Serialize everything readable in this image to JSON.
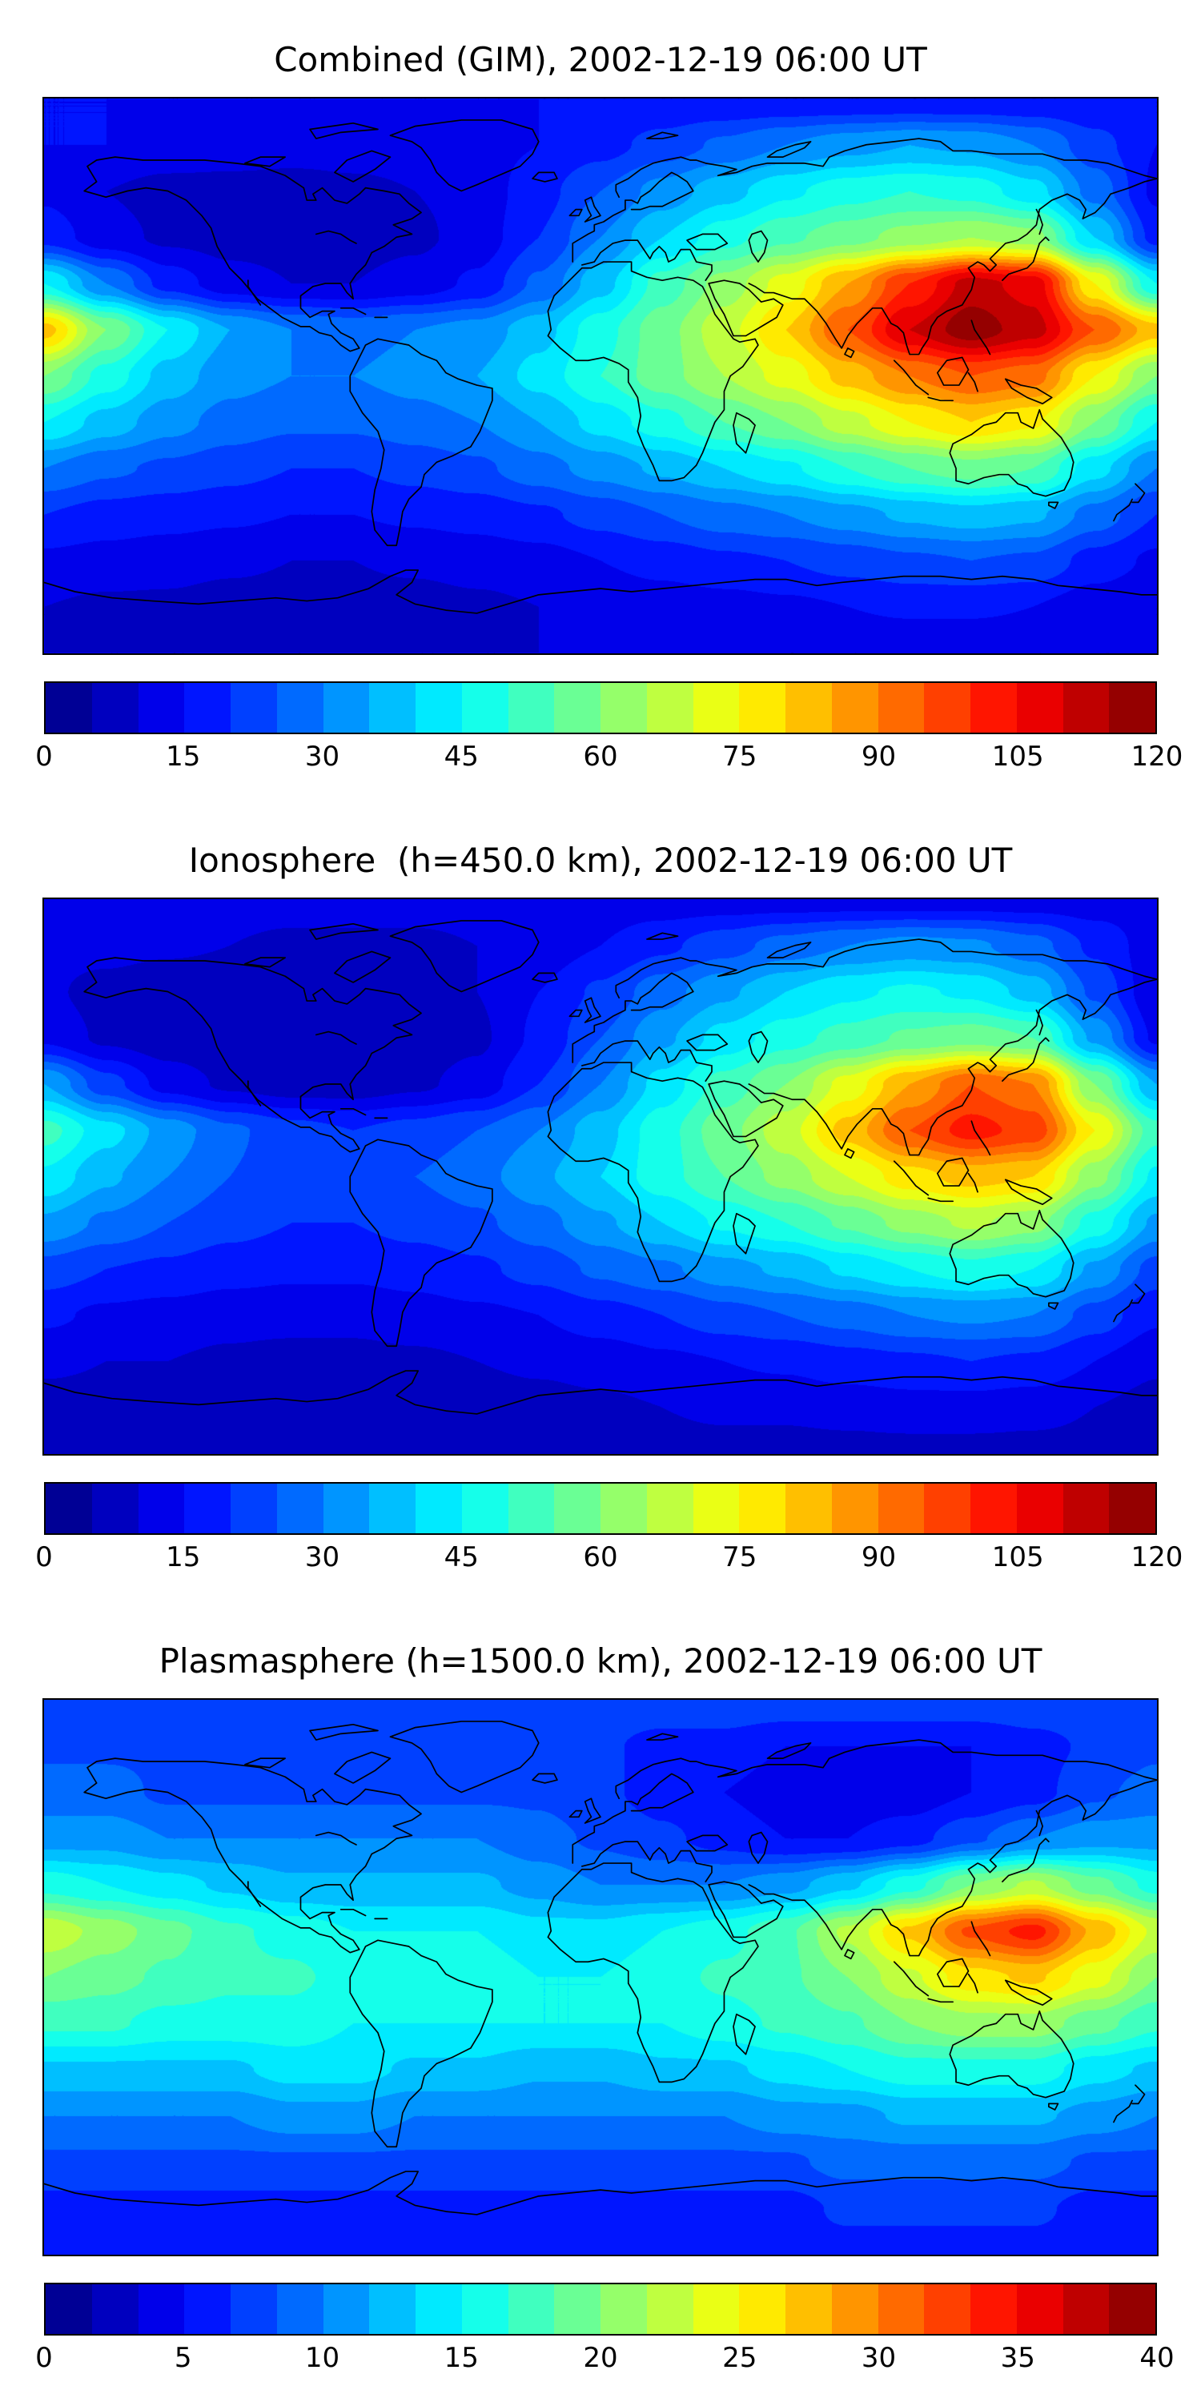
{
  "figure": {
    "panels": [
      {
        "id": "combined",
        "title": "Combined (GIM), 2002-12-19 06:00 UT",
        "colorbar": {
          "min": 0,
          "max": 120,
          "ticks": [
            "0",
            "15",
            "30",
            "45",
            "60",
            "75",
            "90",
            "105",
            "120"
          ],
          "n_segments": 24,
          "colormap": "jet",
          "orientation": "horizontal"
        }
      },
      {
        "id": "ionosphere",
        "title": "Ionosphere  (h=450.0 km), 2002-12-19 06:00 UT",
        "colorbar": {
          "min": 0,
          "max": 120,
          "ticks": [
            "0",
            "15",
            "30",
            "45",
            "60",
            "75",
            "90",
            "105",
            "120"
          ],
          "n_segments": 24,
          "colormap": "jet",
          "orientation": "horizontal"
        }
      },
      {
        "id": "plasmasphere",
        "title": "Plasmasphere (h=1500.0 km), 2002-12-19 06:00 UT",
        "colorbar": {
          "min": 0,
          "max": 40,
          "ticks": [
            "0",
            "5",
            "10",
            "15",
            "20",
            "25",
            "30",
            "35",
            "40"
          ],
          "n_segments": 24,
          "colormap": "jet",
          "orientation": "horizontal"
        }
      }
    ]
  },
  "chart_data": [
    {
      "type": "heatmap",
      "title": "Combined (GIM), 2002-12-19 06:00 UT",
      "projection": "equirectangular",
      "colormap": "jet",
      "vmin": 0,
      "vmax": 120,
      "n_levels": 24,
      "colorbar_ticks": [
        0,
        15,
        30,
        45,
        60,
        75,
        90,
        105,
        120
      ],
      "lon": [
        -180,
        -160,
        -140,
        -120,
        -100,
        -80,
        -60,
        -40,
        -20,
        0,
        20,
        40,
        60,
        80,
        100,
        120,
        140,
        160,
        180
      ],
      "lat": [
        90,
        75,
        60,
        45,
        30,
        15,
        0,
        -15,
        -30,
        -45,
        -60,
        -75,
        -90
      ],
      "values": [
        [
          15,
          15,
          15,
          15,
          15,
          15,
          15,
          15,
          15,
          15,
          15,
          15,
          15,
          15,
          15,
          15,
          15,
          15,
          15
        ],
        [
          15,
          15,
          14,
          13,
          12,
          12,
          12,
          13,
          15,
          18,
          22,
          26,
          30,
          33,
          35,
          34,
          30,
          22,
          15
        ],
        [
          14,
          10,
          8,
          8,
          8,
          9,
          10,
          12,
          18,
          25,
          32,
          38,
          44,
          48,
          50,
          48,
          42,
          28,
          14
        ],
        [
          18,
          12,
          9,
          8,
          8,
          8,
          9,
          12,
          20,
          30,
          40,
          48,
          54,
          58,
          62,
          65,
          62,
          40,
          18
        ],
        [
          45,
          30,
          18,
          12,
          10,
          10,
          12,
          16,
          26,
          38,
          52,
          62,
          72,
          85,
          100,
          112,
          108,
          75,
          45
        ],
        [
          82,
          60,
          45,
          35,
          30,
          28,
          30,
          32,
          38,
          48,
          58,
          68,
          80,
          95,
          110,
          118,
          112,
          95,
          82
        ],
        [
          60,
          48,
          38,
          32,
          30,
          30,
          32,
          35,
          42,
          50,
          58,
          65,
          72,
          82,
          90,
          95,
          92,
          75,
          60
        ],
        [
          45,
          38,
          32,
          28,
          26,
          26,
          28,
          30,
          35,
          42,
          48,
          55,
          60,
          68,
          75,
          80,
          76,
          60,
          45
        ],
        [
          30,
          26,
          24,
          22,
          20,
          20,
          22,
          24,
          28,
          32,
          36,
          40,
          44,
          50,
          55,
          58,
          55,
          42,
          30
        ],
        [
          20,
          18,
          17,
          16,
          15,
          15,
          16,
          17,
          19,
          22,
          25,
          28,
          30,
          33,
          36,
          38,
          36,
          28,
          20
        ],
        [
          14,
          13,
          12,
          11,
          10,
          10,
          11,
          12,
          13,
          15,
          17,
          19,
          20,
          22,
          24,
          25,
          24,
          18,
          14
        ],
        [
          10,
          9,
          9,
          8,
          8,
          8,
          8,
          9,
          10,
          11,
          12,
          13,
          14,
          15,
          16,
          16,
          15,
          12,
          10
        ],
        [
          10,
          10,
          10,
          10,
          10,
          10,
          10,
          10,
          10,
          10,
          10,
          10,
          10,
          10,
          10,
          10,
          10,
          10,
          10
        ]
      ]
    },
    {
      "type": "heatmap",
      "title": "Ionosphere  (h=450.0 km), 2002-12-19 06:00 UT",
      "projection": "equirectangular",
      "colormap": "jet",
      "vmin": 0,
      "vmax": 120,
      "n_levels": 24,
      "colorbar_ticks": [
        0,
        15,
        30,
        45,
        60,
        75,
        90,
        105,
        120
      ],
      "lon": [
        -180,
        -160,
        -140,
        -120,
        -100,
        -80,
        -60,
        -40,
        -20,
        0,
        20,
        40,
        60,
        80,
        100,
        120,
        140,
        160,
        180
      ],
      "lat": [
        90,
        75,
        60,
        45,
        30,
        15,
        0,
        -15,
        -30,
        -45,
        -60,
        -75,
        -90
      ],
      "values": [
        [
          12,
          12,
          12,
          12,
          12,
          12,
          12,
          12,
          12,
          12,
          12,
          12,
          12,
          12,
          12,
          12,
          12,
          12,
          12
        ],
        [
          12,
          12,
          11,
          10,
          9,
          9,
          9,
          10,
          12,
          15,
          19,
          23,
          27,
          30,
          32,
          31,
          27,
          19,
          12
        ],
        [
          11,
          8,
          6,
          6,
          6,
          7,
          8,
          10,
          15,
          21,
          28,
          34,
          40,
          44,
          46,
          44,
          38,
          24,
          11
        ],
        [
          14,
          9,
          7,
          6,
          6,
          6,
          7,
          9,
          16,
          25,
          34,
          42,
          48,
          52,
          56,
          58,
          55,
          34,
          14
        ],
        [
          35,
          22,
          13,
          9,
          7,
          7,
          9,
          12,
          20,
          30,
          42,
          52,
          60,
          72,
          85,
          95,
          90,
          60,
          35
        ],
        [
          52,
          42,
          33,
          26,
          22,
          20,
          22,
          25,
          30,
          38,
          48,
          58,
          68,
          82,
          95,
          102,
          98,
          75,
          52
        ],
        [
          44,
          36,
          30,
          25,
          22,
          22,
          25,
          28,
          34,
          40,
          48,
          55,
          62,
          70,
          78,
          82,
          80,
          62,
          44
        ],
        [
          34,
          29,
          25,
          22,
          20,
          20,
          22,
          24,
          28,
          34,
          40,
          46,
          50,
          56,
          62,
          66,
          62,
          48,
          34
        ],
        [
          23,
          20,
          19,
          17,
          16,
          16,
          17,
          19,
          22,
          26,
          29,
          33,
          36,
          41,
          45,
          48,
          45,
          34,
          23
        ],
        [
          16,
          14,
          13,
          12,
          12,
          12,
          13,
          14,
          15,
          18,
          20,
          23,
          25,
          27,
          30,
          31,
          30,
          23,
          16
        ],
        [
          11,
          10,
          10,
          9,
          8,
          8,
          9,
          10,
          11,
          12,
          14,
          15,
          16,
          18,
          19,
          20,
          19,
          15,
          11
        ],
        [
          8,
          8,
          7,
          7,
          6,
          6,
          7,
          7,
          8,
          9,
          10,
          11,
          11,
          12,
          13,
          13,
          12,
          10,
          8
        ],
        [
          8,
          8,
          8,
          8,
          8,
          8,
          8,
          8,
          8,
          8,
          8,
          8,
          8,
          8,
          8,
          8,
          8,
          8,
          8
        ]
      ]
    },
    {
      "type": "heatmap",
      "title": "Plasmasphere (h=1500.0 km), 2002-12-19 06:00 UT",
      "projection": "equirectangular",
      "colormap": "jet",
      "vmin": 0,
      "vmax": 40,
      "n_levels": 24,
      "colorbar_ticks": [
        0,
        5,
        10,
        15,
        20,
        25,
        30,
        35,
        40
      ],
      "lon": [
        -180,
        -160,
        -140,
        -120,
        -100,
        -80,
        -60,
        -40,
        -20,
        0,
        20,
        40,
        60,
        80,
        100,
        120,
        140,
        160,
        180
      ],
      "lat": [
        90,
        75,
        60,
        45,
        30,
        15,
        0,
        -15,
        -30,
        -45,
        -60,
        -75,
        -90
      ],
      "values": [
        [
          8,
          8,
          8,
          8,
          8,
          8,
          8,
          8,
          8,
          8,
          8,
          8,
          8,
          8,
          8,
          8,
          8,
          8,
          8
        ],
        [
          8,
          8,
          8,
          7,
          7,
          7,
          7,
          7,
          7,
          7,
          6,
          6,
          5,
          5,
          5,
          5,
          6,
          7,
          8
        ],
        [
          9,
          9,
          8,
          8,
          8,
          8,
          8,
          8,
          8,
          7,
          6,
          5,
          4,
          4,
          4,
          5,
          6,
          8,
          9
        ],
        [
          11,
          11,
          10,
          10,
          10,
          10,
          10,
          10,
          9,
          8,
          7,
          6,
          5,
          5,
          6,
          8,
          10,
          11,
          11
        ],
        [
          16,
          15,
          14,
          13,
          12,
          12,
          12,
          12,
          11,
          10,
          10,
          10,
          11,
          13,
          16,
          20,
          22,
          19,
          16
        ],
        [
          23,
          21,
          19,
          17,
          16,
          15,
          15,
          15,
          14,
          14,
          15,
          16,
          18,
          22,
          27,
          32,
          34,
          28,
          23
        ],
        [
          20,
          19,
          18,
          17,
          17,
          16,
          16,
          16,
          15,
          15,
          16,
          17,
          18,
          20,
          23,
          26,
          27,
          24,
          20
        ],
        [
          17,
          17,
          16,
          16,
          16,
          15,
          15,
          15,
          15,
          15,
          15,
          16,
          17,
          18,
          20,
          21,
          21,
          19,
          17
        ],
        [
          13,
          13,
          13,
          13,
          14,
          14,
          13,
          13,
          12,
          12,
          13,
          13,
          14,
          15,
          16,
          16,
          16,
          14,
          13
        ],
        [
          10,
          10,
          10,
          10,
          11,
          11,
          10,
          10,
          10,
          10,
          10,
          10,
          11,
          11,
          12,
          12,
          12,
          11,
          10
        ],
        [
          8,
          8,
          8,
          8,
          8,
          8,
          8,
          8,
          8,
          8,
          8,
          8,
          8,
          9,
          9,
          9,
          9,
          8,
          8
        ],
        [
          6,
          6,
          6,
          6,
          6,
          6,
          6,
          6,
          6,
          6,
          6,
          6,
          6,
          7,
          7,
          7,
          7,
          6,
          6
        ],
        [
          6,
          6,
          6,
          6,
          6,
          6,
          6,
          6,
          6,
          6,
          6,
          6,
          6,
          6,
          6,
          6,
          6,
          6,
          6
        ]
      ]
    }
  ]
}
